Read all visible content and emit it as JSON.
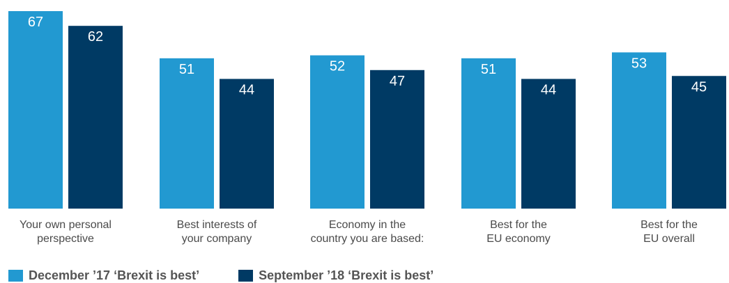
{
  "chart_data": {
    "type": "bar",
    "categories": [
      [
        "Your own personal",
        "perspective"
      ],
      [
        "Best interests of",
        "your company"
      ],
      [
        "Economy in the",
        "country you are based:"
      ],
      [
        "Best for the",
        "EU economy"
      ],
      [
        "Best for the",
        "EU overall"
      ]
    ],
    "series": [
      {
        "name": "December ’17 ‘Brexit is best’",
        "values": [
          67,
          51,
          52,
          51,
          53
        ],
        "color": "#2299d1"
      },
      {
        "name": "September ’18 ‘Brexit is best’",
        "values": [
          62,
          44,
          47,
          44,
          45
        ],
        "color": "#003a64"
      }
    ],
    "ylim": [
      0,
      67
    ],
    "grid": false,
    "legend_position": "bottom-left",
    "title": "",
    "xlabel": "",
    "ylabel": ""
  }
}
